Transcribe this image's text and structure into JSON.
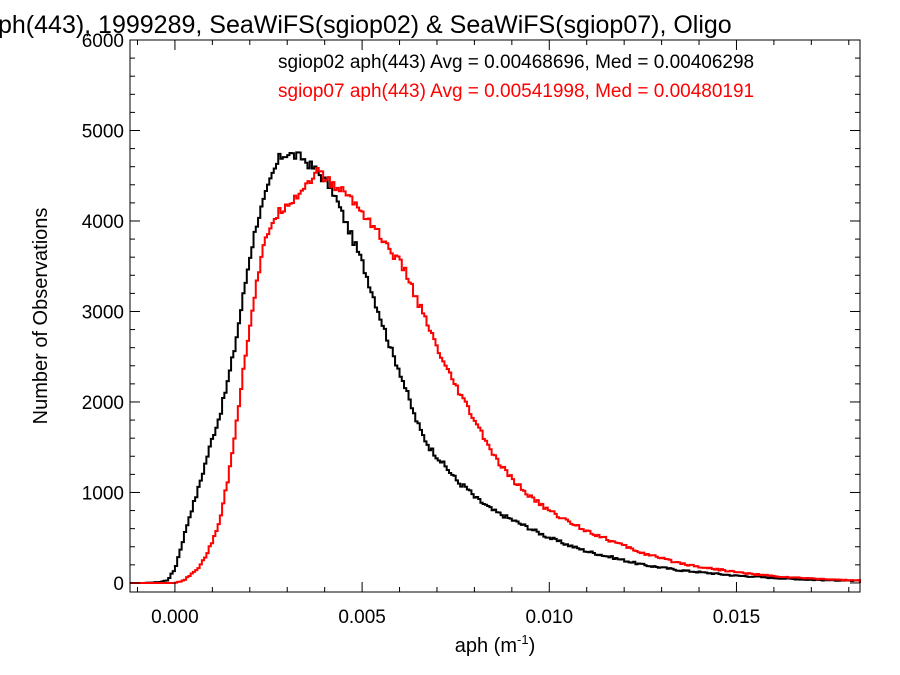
{
  "chart_data": {
    "type": "line",
    "step": true,
    "title": "ph(443), 1999289, SeaWiFS(sgiop02) & SeaWiFS(sgiop07), Oligo",
    "xlabel": "aph (m",
    "xlabel_sup": "-1",
    "xlabel_close": ")",
    "ylabel": "Number of Observations",
    "xlim": [
      -0.0012,
      0.0183
    ],
    "ylim": [
      -100,
      6000
    ],
    "x_ticks": [
      0.0,
      0.005,
      0.01,
      0.015
    ],
    "x_tick_labels": [
      "0.000",
      "0.005",
      "0.010",
      "0.015"
    ],
    "y_ticks": [
      0,
      1000,
      2000,
      3000,
      4000,
      5000,
      6000
    ],
    "y_tick_labels": [
      "0",
      "1000",
      "2000",
      "3000",
      "4000",
      "5000",
      "6000"
    ],
    "grid": false,
    "legend_position": "top-right",
    "legend": [
      {
        "text": "sgiop02 aph(443) Avg = 0.00468696, Med = 0.00406298",
        "color": "#000000"
      },
      {
        "text": "sgiop07 aph(443) Avg = 0.00541998, Med = 0.00480191",
        "color": "#ff0000"
      }
    ],
    "series": [
      {
        "color": "#000000",
        "points": [
          [
            -0.0012,
            0
          ],
          [
            -0.0008,
            0
          ],
          [
            -0.0004,
            10
          ],
          [
            -0.0002,
            30
          ],
          [
            0.0,
            150
          ],
          [
            0.0002,
            450
          ],
          [
            0.0004,
            750
          ],
          [
            0.0006,
            1000
          ],
          [
            0.0008,
            1300
          ],
          [
            0.001,
            1600
          ],
          [
            0.0012,
            1850
          ],
          [
            0.0014,
            2200
          ],
          [
            0.0016,
            2600
          ],
          [
            0.0018,
            3100
          ],
          [
            0.002,
            3600
          ],
          [
            0.0022,
            4000
          ],
          [
            0.0024,
            4250
          ],
          [
            0.0026,
            4500
          ],
          [
            0.0028,
            4700
          ],
          [
            0.003,
            4750
          ],
          [
            0.0032,
            4720
          ],
          [
            0.0034,
            4700
          ],
          [
            0.0036,
            4620
          ],
          [
            0.0038,
            4550
          ],
          [
            0.004,
            4450
          ],
          [
            0.0042,
            4350
          ],
          [
            0.0044,
            4150
          ],
          [
            0.0046,
            3950
          ],
          [
            0.0048,
            3750
          ],
          [
            0.005,
            3550
          ],
          [
            0.0052,
            3300
          ],
          [
            0.0054,
            3050
          ],
          [
            0.0056,
            2800
          ],
          [
            0.0058,
            2550
          ],
          [
            0.006,
            2350
          ],
          [
            0.0062,
            2100
          ],
          [
            0.0064,
            1850
          ],
          [
            0.0066,
            1650
          ],
          [
            0.0068,
            1500
          ],
          [
            0.007,
            1400
          ],
          [
            0.0072,
            1300
          ],
          [
            0.0074,
            1200
          ],
          [
            0.0076,
            1100
          ],
          [
            0.0078,
            1050
          ],
          [
            0.008,
            950
          ],
          [
            0.0085,
            800
          ],
          [
            0.009,
            700
          ],
          [
            0.0095,
            600
          ],
          [
            0.01,
            500
          ],
          [
            0.0105,
            420
          ],
          [
            0.011,
            350
          ],
          [
            0.0115,
            300
          ],
          [
            0.012,
            250
          ],
          [
            0.0125,
            200
          ],
          [
            0.013,
            170
          ],
          [
            0.0135,
            140
          ],
          [
            0.014,
            120
          ],
          [
            0.0145,
            100
          ],
          [
            0.015,
            80
          ],
          [
            0.0155,
            70
          ],
          [
            0.016,
            55
          ],
          [
            0.0165,
            45
          ],
          [
            0.017,
            35
          ],
          [
            0.0175,
            30
          ],
          [
            0.018,
            25
          ],
          [
            0.0183,
            25
          ]
        ]
      },
      {
        "color": "#ff0000",
        "points": [
          [
            -0.0012,
            0
          ],
          [
            -0.0004,
            0
          ],
          [
            0.0,
            0
          ],
          [
            0.0002,
            20
          ],
          [
            0.0004,
            80
          ],
          [
            0.0006,
            150
          ],
          [
            0.0008,
            280
          ],
          [
            0.001,
            450
          ],
          [
            0.0012,
            700
          ],
          [
            0.0014,
            1100
          ],
          [
            0.0016,
            1650
          ],
          [
            0.0018,
            2250
          ],
          [
            0.002,
            2850
          ],
          [
            0.0022,
            3350
          ],
          [
            0.0024,
            3750
          ],
          [
            0.0026,
            4000
          ],
          [
            0.0028,
            4100
          ],
          [
            0.003,
            4200
          ],
          [
            0.0032,
            4250
          ],
          [
            0.0034,
            4350
          ],
          [
            0.0036,
            4450
          ],
          [
            0.0038,
            4550
          ],
          [
            0.004,
            4480
          ],
          [
            0.0042,
            4400
          ],
          [
            0.0044,
            4350
          ],
          [
            0.0046,
            4300
          ],
          [
            0.0048,
            4200
          ],
          [
            0.005,
            4100
          ],
          [
            0.0052,
            4000
          ],
          [
            0.0054,
            3900
          ],
          [
            0.0056,
            3750
          ],
          [
            0.0058,
            3650
          ],
          [
            0.006,
            3550
          ],
          [
            0.0062,
            3400
          ],
          [
            0.0064,
            3200
          ],
          [
            0.0066,
            3000
          ],
          [
            0.0068,
            2800
          ],
          [
            0.007,
            2600
          ],
          [
            0.0072,
            2400
          ],
          [
            0.0074,
            2250
          ],
          [
            0.0076,
            2100
          ],
          [
            0.0078,
            1950
          ],
          [
            0.008,
            1800
          ],
          [
            0.0082,
            1650
          ],
          [
            0.0084,
            1500
          ],
          [
            0.0086,
            1350
          ],
          [
            0.0088,
            1250
          ],
          [
            0.009,
            1150
          ],
          [
            0.0095,
            950
          ],
          [
            0.01,
            800
          ],
          [
            0.0105,
            680
          ],
          [
            0.011,
            580
          ],
          [
            0.0115,
            490
          ],
          [
            0.012,
            410
          ],
          [
            0.0125,
            330
          ],
          [
            0.013,
            270
          ],
          [
            0.0135,
            220
          ],
          [
            0.014,
            180
          ],
          [
            0.0145,
            150
          ],
          [
            0.015,
            120
          ],
          [
            0.0155,
            95
          ],
          [
            0.016,
            75
          ],
          [
            0.0165,
            60
          ],
          [
            0.017,
            50
          ],
          [
            0.0175,
            40
          ],
          [
            0.018,
            30
          ],
          [
            0.0183,
            30
          ]
        ]
      }
    ]
  }
}
